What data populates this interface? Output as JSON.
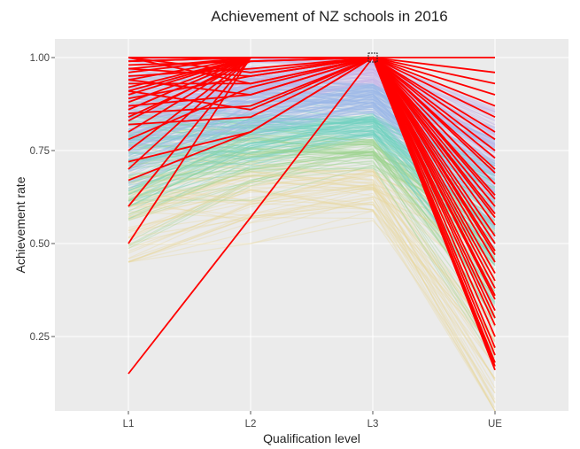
{
  "chart_data": {
    "type": "line",
    "title": "Achievement of NZ schools in 2016",
    "xlabel": "Qualification level",
    "ylabel": "Achievement rate",
    "categories": [
      "L1",
      "L2",
      "L3",
      "UE"
    ],
    "ylim": [
      0.05,
      1.05
    ],
    "yticks": [
      0.25,
      0.5,
      0.75,
      1.0
    ],
    "ytick_labels": [
      "0.25",
      "0.50",
      "0.75",
      "1.00"
    ],
    "grid": true,
    "legend": "none",
    "colors": {
      "plot_background": "#ebebeb",
      "grid": "#ffffff",
      "highlight": "#ff0000",
      "background_palette": [
        "#9bb8e8",
        "#6fd0c0",
        "#9ed48f",
        "#e8d79a",
        "#c9b8e8"
      ]
    },
    "highlighted_series": [
      {
        "values": [
          0.15,
          0.57,
          1.0,
          0.17
        ]
      },
      {
        "values": [
          0.5,
          1.0,
          1.0,
          0.16
        ]
      },
      {
        "values": [
          0.6,
          1.0,
          1.0,
          0.2
        ]
      },
      {
        "values": [
          0.67,
          0.8,
          1.0,
          0.22
        ]
      },
      {
        "values": [
          0.7,
          1.0,
          1.0,
          0.25
        ]
      },
      {
        "values": [
          0.72,
          0.8,
          1.0,
          0.3
        ]
      },
      {
        "values": [
          0.75,
          1.0,
          1.0,
          0.32
        ]
      },
      {
        "values": [
          0.78,
          0.92,
          1.0,
          0.35
        ]
      },
      {
        "values": [
          0.8,
          1.0,
          1.0,
          0.38
        ]
      },
      {
        "values": [
          0.82,
          0.84,
          1.0,
          0.4
        ]
      },
      {
        "values": [
          0.83,
          1.0,
          1.0,
          0.42
        ]
      },
      {
        "values": [
          0.85,
          0.87,
          1.0,
          0.45
        ]
      },
      {
        "values": [
          0.86,
          1.0,
          1.0,
          0.48
        ]
      },
      {
        "values": [
          0.87,
          0.9,
          1.0,
          0.5
        ]
      },
      {
        "values": [
          0.88,
          1.0,
          1.0,
          0.52
        ]
      },
      {
        "values": [
          0.89,
          0.95,
          1.0,
          0.55
        ]
      },
      {
        "values": [
          0.9,
          1.0,
          1.0,
          0.58
        ]
      },
      {
        "values": [
          0.91,
          0.86,
          1.0,
          0.6
        ]
      },
      {
        "values": [
          0.92,
          1.0,
          1.0,
          0.63
        ]
      },
      {
        "values": [
          0.93,
          0.93,
          1.0,
          0.66
        ]
      },
      {
        "values": [
          0.94,
          1.0,
          1.0,
          0.7
        ]
      },
      {
        "values": [
          0.95,
          0.97,
          1.0,
          0.73
        ]
      },
      {
        "values": [
          0.96,
          1.0,
          1.0,
          0.75
        ]
      },
      {
        "values": [
          0.97,
          1.0,
          1.0,
          0.78
        ]
      },
      {
        "values": [
          0.98,
          0.99,
          1.0,
          0.8
        ]
      },
      {
        "values": [
          0.99,
          1.0,
          1.0,
          0.84
        ]
      },
      {
        "values": [
          1.0,
          0.93,
          1.0,
          0.87
        ]
      },
      {
        "values": [
          1.0,
          1.0,
          1.0,
          0.9
        ]
      },
      {
        "values": [
          1.0,
          0.96,
          1.0,
          0.93
        ]
      },
      {
        "values": [
          1.0,
          1.0,
          1.0,
          0.96
        ]
      },
      {
        "values": [
          1.0,
          1.0,
          1.0,
          1.0
        ]
      },
      {
        "values": [
          0.84,
          0.99,
          1.0,
          0.28
        ]
      },
      {
        "values": [
          0.86,
          1.0,
          1.0,
          0.47
        ]
      },
      {
        "values": [
          0.91,
          1.0,
          1.0,
          0.36
        ]
      },
      {
        "values": [
          0.97,
          0.95,
          1.0,
          0.18
        ]
      },
      {
        "values": [
          1.0,
          1.0,
          1.0,
          0.62
        ]
      },
      {
        "values": [
          0.99,
          1.0,
          1.0,
          0.69
        ]
      },
      {
        "values": [
          0.94,
          0.9,
          1.0,
          0.57
        ]
      }
    ],
    "background_series_count": 420
  }
}
